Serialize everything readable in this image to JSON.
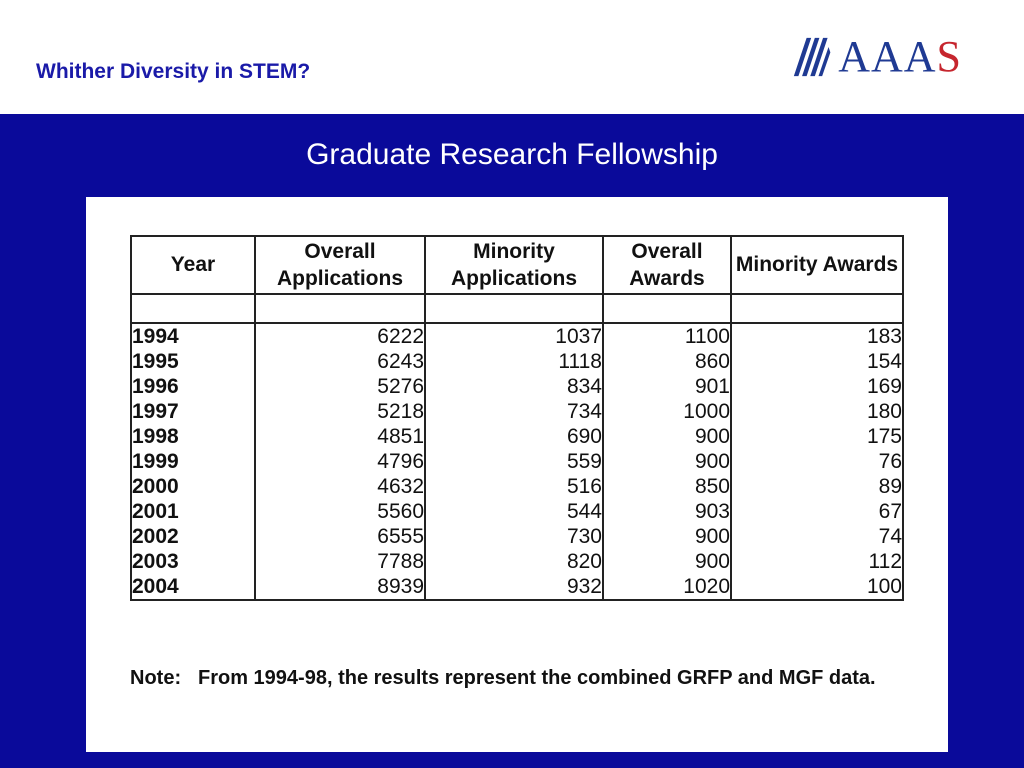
{
  "header": {
    "title": "Whither Diversity in STEM?",
    "logo_text": "AAAS"
  },
  "slide_title": "Graduate Research Fellowship",
  "table": {
    "columns": [
      "Year",
      "Overall Applications",
      "Minority Applications",
      "Overall Awards",
      "Minority Awards"
    ],
    "rows": [
      [
        "1994",
        "6222",
        "1037",
        "1100",
        "183"
      ],
      [
        "1995",
        "6243",
        "1118",
        "860",
        "154"
      ],
      [
        "1996",
        "5276",
        "834",
        "901",
        "169"
      ],
      [
        "1997",
        "5218",
        "734",
        "1000",
        "180"
      ],
      [
        "1998",
        "4851",
        "690",
        "900",
        "175"
      ],
      [
        "1999",
        "4796",
        "559",
        "900",
        "76"
      ],
      [
        "2000",
        "4632",
        "516",
        "850",
        "89"
      ],
      [
        "2001",
        "5560",
        "544",
        "903",
        "67"
      ],
      [
        "2002",
        "6555",
        "730",
        "900",
        "74"
      ],
      [
        "2003",
        "7788",
        "820",
        "900",
        "112"
      ],
      [
        "2004",
        "8939",
        "932",
        "1020",
        "100"
      ]
    ]
  },
  "note": {
    "label": "Note:",
    "text": "From 1994-98, the results represent the combined GRFP and MGF data."
  },
  "colors": {
    "band": "#0a0a9a",
    "header_title": "#1a1aa8",
    "logo_blue": "#1f3a93",
    "logo_red": "#c6262e"
  }
}
